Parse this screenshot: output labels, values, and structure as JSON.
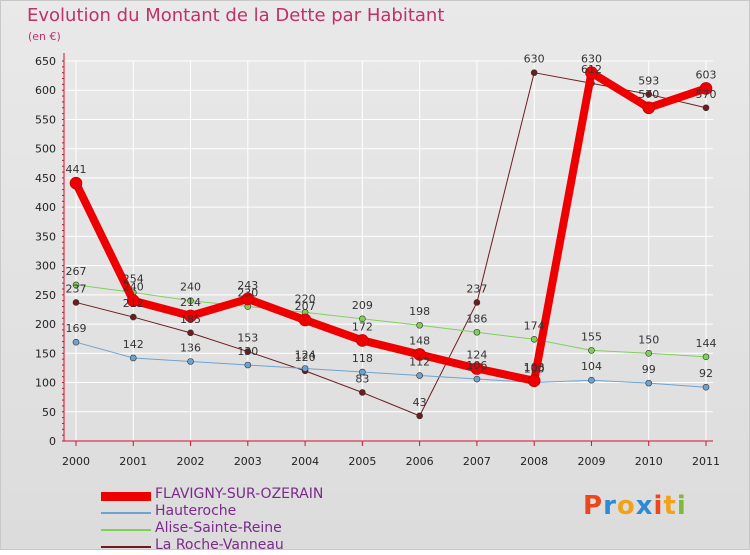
{
  "chart_data": {
    "type": "line",
    "title": "Evolution du Montant de la Dette par Habitant",
    "subtitle": "(en €)",
    "categories": [
      "2000",
      "2001",
      "2002",
      "2003",
      "2004",
      "2005",
      "2006",
      "2007",
      "2008",
      "2009",
      "2010",
      "2011"
    ],
    "ylim": [
      0,
      650
    ],
    "yticks": [
      0,
      50,
      100,
      150,
      200,
      250,
      300,
      350,
      400,
      450,
      500,
      550,
      600,
      650
    ],
    "grid": true,
    "series": [
      {
        "name": "La Roche-Vanneau",
        "color": "#6e1c1c",
        "width": 1,
        "values": [
          237,
          212,
          185,
          153,
          120,
          83,
          43,
          237,
          630,
          612,
          593,
          570
        ],
        "labels": [
          "237",
          "212",
          "185",
          "153",
          "120",
          "83",
          "43",
          "237",
          "630",
          "612",
          "593",
          "570"
        ]
      },
      {
        "name": "Alise-Sainte-Reine",
        "color": "#7fd05a",
        "width": 1,
        "values": [
          267,
          254,
          240,
          230,
          220,
          209,
          198,
          186,
          174,
          155,
          150,
          144
        ],
        "labels": [
          "267",
          "254",
          "240",
          "230",
          "220",
          "209",
          "198",
          "186",
          "174",
          "155",
          "150",
          "144"
        ]
      },
      {
        "name": "Hauteroche",
        "color": "#6ea2cf",
        "width": 1,
        "values": [
          169,
          142,
          136,
          130,
          124,
          118,
          112,
          106,
          100,
          104,
          99,
          92
        ],
        "labels": [
          "169",
          "142",
          "136",
          "130",
          "124",
          "118",
          "112",
          "106",
          "100",
          "104",
          "99",
          "92"
        ]
      },
      {
        "name": "FLAVIGNY-SUR-OZERAIN",
        "color": "#ee0000",
        "width": 8,
        "values": [
          441,
          240,
          214,
          243,
          207,
          172,
          148,
          124,
          103,
          630,
          570,
          603
        ],
        "labels": [
          "441",
          "240",
          "214",
          "243",
          "207",
          "172",
          "148",
          "124",
          "103",
          "630",
          "570",
          "603"
        ]
      }
    ],
    "legend": [
      "FLAVIGNY-SUR-OZERAIN",
      "Hauteroche",
      "Alise-Sainte-Reine",
      "La Roche-Vanneau"
    ]
  },
  "logo": {
    "text": "Proxiti",
    "letters": [
      "P",
      "r",
      "o",
      "x",
      "i",
      "t",
      "i"
    ],
    "colors": [
      "#e8481c",
      "#2d8bd5",
      "#f2a21a",
      "#2d8bd5",
      "#e8481c",
      "#f2a21a",
      "#7fb93a"
    ]
  }
}
